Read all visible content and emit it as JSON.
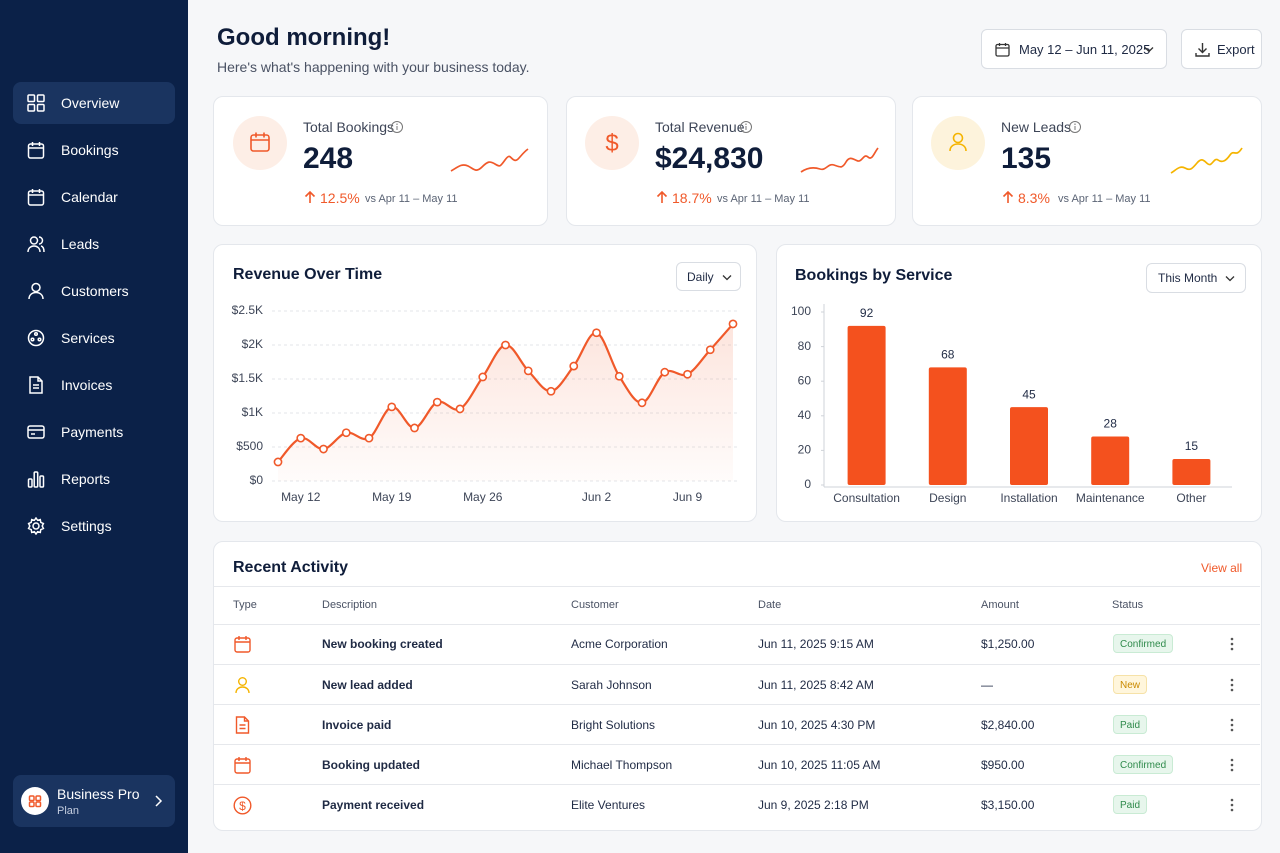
{
  "sidebar": {
    "nav": [
      "Overview",
      "Bookings",
      "Calendar",
      "Leads",
      "Customers",
      "Services",
      "Invoices",
      "Payments",
      "Reports",
      "Settings"
    ],
    "plan": {
      "name": "Business Pro",
      "label": "Plan"
    }
  },
  "header": {
    "title": "Good morning!",
    "subtitle": "Here's what's happening with your business today.",
    "date_range": "May 12 – Jun 11, 2025",
    "export": "Export"
  },
  "kpis": [
    {
      "label": "Total Bookings",
      "value": "248",
      "change": "12.5%",
      "period": "vs Apr 11 – May 11"
    },
    {
      "label": "Total Revenue",
      "value": "$24,830",
      "change": "18.7%",
      "period": "vs Apr 11 – May 11"
    },
    {
      "label": "New Leads",
      "value": "135",
      "change": "8.3%",
      "period": "vs Apr 11 – May 11"
    }
  ],
  "chart_data": [
    {
      "type": "line",
      "title": "Revenue Over Time",
      "control": "Daily",
      "categories": [
        null,
        "May 12",
        null,
        null,
        null,
        "May 19",
        null,
        null,
        null,
        "May 26",
        null,
        null,
        null,
        null,
        "Jun 2",
        null,
        null,
        null,
        "Jun 9",
        null,
        null
      ],
      "values": [
        280,
        630,
        470,
        710,
        630,
        1090,
        780,
        1160,
        1060,
        1530,
        2000,
        1620,
        1320,
        1690,
        2180,
        1540,
        1150,
        1600,
        1570,
        1930,
        2310
      ],
      "color": "#f0592a",
      "ylim": [
        0,
        2500
      ],
      "yticks": [
        {
          "value": 0,
          "label": "$0"
        },
        {
          "value": 500,
          "label": "$500"
        },
        {
          "value": 1000,
          "label": "$1K"
        },
        {
          "value": 1500,
          "label": "$1.5K"
        },
        {
          "value": 2000,
          "label": "$2K"
        },
        {
          "value": 2500,
          "label": "$2.5K"
        }
      ],
      "grid": true
    },
    {
      "type": "bar",
      "title": "Bookings by Service",
      "control": "This Month",
      "categories": [
        "Consultation",
        "Design",
        "Installation",
        "Maintenance",
        "Other"
      ],
      "values": [
        92,
        68,
        45,
        28,
        15
      ],
      "color": "#f4511e",
      "ylim": [
        0,
        100
      ],
      "yticks": [
        0,
        20,
        40,
        60,
        80,
        100
      ],
      "grid": false
    }
  ],
  "activity": {
    "title": "Recent Activity",
    "view_all": "View all",
    "columns": [
      "Type",
      "Description",
      "Customer",
      "Date",
      "Amount",
      "Status"
    ],
    "rows": [
      {
        "description": "New booking created",
        "customer": "Acme Corporation",
        "date": "Jun 11, 2025 9:15 AM",
        "amount": "$1,250.00",
        "status": "Confirmed"
      },
      {
        "description": "New lead added",
        "customer": "Sarah Johnson",
        "date": "Jun 11, 2025 8:42 AM",
        "amount": "—",
        "status": "New"
      },
      {
        "description": "Invoice paid",
        "customer": "Bright Solutions",
        "date": "Jun 10, 2025 4:30 PM",
        "amount": "$2,840.00",
        "status": "Paid"
      },
      {
        "description": "Booking updated",
        "customer": "Michael Thompson",
        "date": "Jun 10, 2025 11:05 AM",
        "amount": "$950.00",
        "status": "Confirmed"
      },
      {
        "description": "Payment received",
        "customer": "Elite Ventures",
        "date": "Jun 9, 2025 2:18 PM",
        "amount": "$3,150.00",
        "status": "Paid"
      }
    ]
  }
}
